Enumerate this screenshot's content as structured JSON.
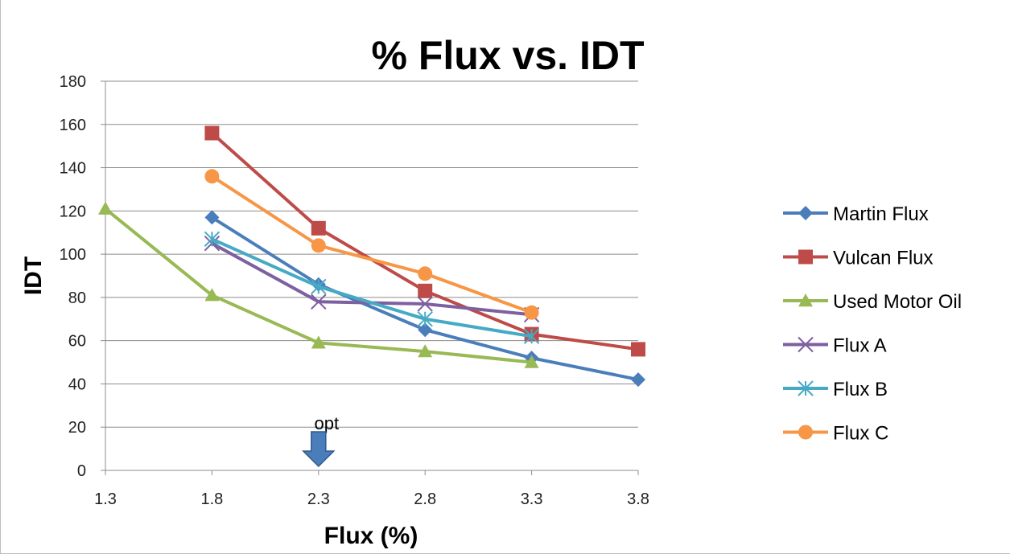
{
  "chart_data": {
    "type": "line",
    "title": "% Flux vs. IDT",
    "xlabel": "Flux (%)",
    "ylabel": "IDT",
    "xlim": [
      1.3,
      3.8
    ],
    "ylim": [
      0,
      180
    ],
    "x_ticks": [
      "1.3",
      "1.8",
      "2.3",
      "2.8",
      "3.3",
      "3.8"
    ],
    "y_ticks": [
      "0",
      "20",
      "40",
      "60",
      "80",
      "100",
      "120",
      "140",
      "160",
      "180"
    ],
    "grid": "horizontal",
    "legend_position": "right",
    "series": [
      {
        "name": "Martin Flux",
        "color": "#4a7ebb",
        "marker": "diamond",
        "x": [
          1.8,
          2.3,
          2.8,
          3.3,
          3.8
        ],
        "values": [
          117,
          86,
          65,
          52,
          42
        ]
      },
      {
        "name": "Vulcan Flux",
        "color": "#be4b48",
        "marker": "square",
        "x": [
          1.8,
          2.3,
          2.8,
          3.3,
          3.8
        ],
        "values": [
          156,
          112,
          83,
          63,
          56
        ]
      },
      {
        "name": "Used Motor Oil",
        "color": "#98b954",
        "marker": "triangle",
        "x": [
          1.3,
          1.8,
          2.3,
          2.8,
          3.3
        ],
        "values": [
          121,
          81,
          59,
          55,
          50
        ]
      },
      {
        "name": "Flux A",
        "color": "#7d60a0",
        "marker": "x",
        "x": [
          1.8,
          2.3,
          2.8,
          3.3
        ],
        "values": [
          105,
          78,
          77,
          72
        ]
      },
      {
        "name": "Flux B",
        "color": "#46aac5",
        "marker": "star",
        "x": [
          1.8,
          2.3,
          2.8,
          3.3
        ],
        "values": [
          107,
          85,
          70,
          62
        ]
      },
      {
        "name": "Flux C",
        "color": "#f79646",
        "marker": "circle",
        "x": [
          1.8,
          2.3,
          2.8,
          3.3
        ],
        "values": [
          136,
          104,
          91,
          73
        ]
      }
    ],
    "annotations": [
      {
        "text": "opt",
        "x": 2.3,
        "arrow": "down",
        "arrow_color": "#4a7ebb"
      }
    ]
  }
}
